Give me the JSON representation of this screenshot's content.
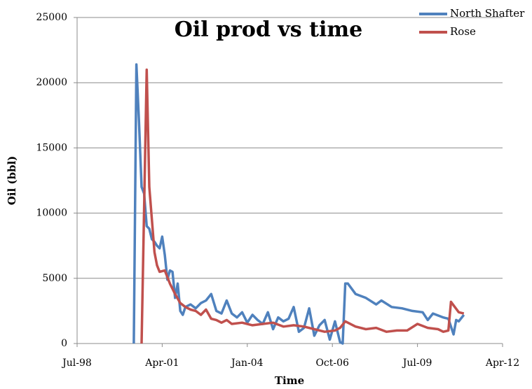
{
  "chart_data": {
    "type": "line",
    "title": "Oil prod vs time",
    "x_label": "Time",
    "y_label": "Oil (bbl)",
    "xlim": [
      "1998-07",
      "2012-04"
    ],
    "xticks": [
      {
        "value": "1998-07",
        "label": "Jul-98"
      },
      {
        "value": "2001-04",
        "label": "Apr-01"
      },
      {
        "value": "2004-01",
        "label": "Jan-04"
      },
      {
        "value": "2006-10",
        "label": "Oct-06"
      },
      {
        "value": "2009-07",
        "label": "Jul-09"
      },
      {
        "value": "2012-04",
        "label": "Apr-12"
      }
    ],
    "ylim": [
      0,
      25000
    ],
    "yticks": [
      0,
      5000,
      10000,
      15000,
      20000,
      25000
    ],
    "grid": true,
    "legend": "top-right",
    "series": [
      {
        "name": "North Shafter",
        "color": "#4f81bd",
        "x": [
          "2000-05",
          "2000-06",
          "2000-07",
          "2000-08",
          "2000-09",
          "2000-10",
          "2000-11",
          "2000-12",
          "2001-01",
          "2001-02",
          "2001-03",
          "2001-04",
          "2001-05",
          "2001-06",
          "2001-07",
          "2001-08",
          "2001-09",
          "2001-10",
          "2001-11",
          "2001-12",
          "2002-01",
          "2002-03",
          "2002-05",
          "2002-07",
          "2002-09",
          "2002-11",
          "2003-01",
          "2003-03",
          "2003-05",
          "2003-07",
          "2003-09",
          "2003-11",
          "2004-01",
          "2004-03",
          "2004-05",
          "2004-07",
          "2004-09",
          "2004-11",
          "2005-01",
          "2005-03",
          "2005-05",
          "2005-07",
          "2005-09",
          "2005-11",
          "2006-01",
          "2006-03",
          "2006-05",
          "2006-07",
          "2006-09",
          "2006-11",
          "2007-01",
          "2007-02",
          "2007-03",
          "2007-04",
          "2007-07",
          "2007-11",
          "2008-03",
          "2008-05",
          "2008-09",
          "2009-01",
          "2009-05",
          "2009-09",
          "2009-11",
          "2010-01",
          "2010-05",
          "2010-07",
          "2010-09",
          "2010-10",
          "2010-11",
          "2011-01"
        ],
        "values": [
          0,
          21400,
          17000,
          12000,
          11500,
          9000,
          8800,
          8000,
          7800,
          7500,
          7300,
          8200,
          6800,
          4900,
          5600,
          5500,
          3500,
          4600,
          2500,
          2200,
          2800,
          3000,
          2700,
          3100,
          3300,
          3800,
          2500,
          2300,
          3300,
          2300,
          2000,
          2400,
          1600,
          2200,
          1800,
          1500,
          2400,
          1100,
          2000,
          1700,
          1900,
          2800,
          900,
          1200,
          2700,
          600,
          1400,
          1800,
          300,
          1700,
          100,
          0,
          4600,
          4600,
          3800,
          3500,
          3000,
          3300,
          2800,
          2700,
          2500,
          2400,
          1800,
          2300,
          2000,
          1900,
          700,
          1800,
          1700,
          2200
        ]
      },
      {
        "name": "Rose",
        "color": "#c0504d",
        "x": [
          "2000-08",
          "2000-10",
          "2000-11",
          "2000-12",
          "2001-01",
          "2001-02",
          "2001-03",
          "2001-05",
          "2001-07",
          "2001-09",
          "2001-11",
          "2002-01",
          "2002-03",
          "2002-05",
          "2002-07",
          "2002-09",
          "2002-11",
          "2003-01",
          "2003-03",
          "2003-05",
          "2003-07",
          "2003-11",
          "2004-03",
          "2004-07",
          "2004-11",
          "2005-03",
          "2005-07",
          "2005-11",
          "2006-03",
          "2006-07",
          "2006-11",
          "2007-01",
          "2007-03",
          "2007-07",
          "2007-11",
          "2008-03",
          "2008-07",
          "2008-11",
          "2009-03",
          "2009-07",
          "2009-11",
          "2010-03",
          "2010-05",
          "2010-07",
          "2010-08",
          "2010-11",
          "2011-01"
        ],
        "values": [
          0,
          21000,
          12000,
          9500,
          7000,
          6000,
          5500,
          5600,
          4600,
          3800,
          3100,
          2800,
          2600,
          2500,
          2200,
          2600,
          1900,
          1800,
          1600,
          1800,
          1500,
          1600,
          1400,
          1500,
          1600,
          1300,
          1400,
          1300,
          1100,
          900,
          1000,
          1200,
          1700,
          1300,
          1100,
          1200,
          900,
          1000,
          1000,
          1500,
          1200,
          1100,
          900,
          1000,
          3200,
          2400,
          2300
        ]
      }
    ]
  }
}
